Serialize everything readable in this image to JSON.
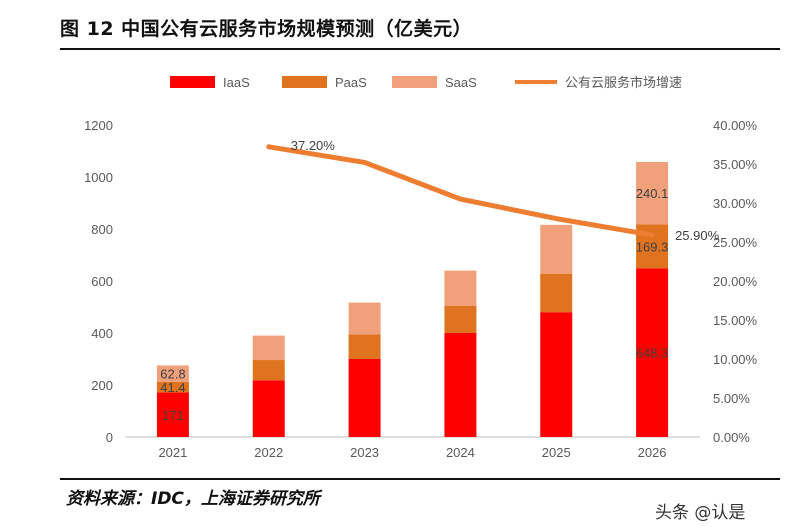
{
  "title": "图 12 中国公有云服务市场规模预测（亿美元）",
  "source": "资料来源：IDC，上海证券研究所",
  "watermark": "头条 @认是",
  "colors": {
    "iaas": "#ff0000",
    "paas": "#e0731f",
    "saas": "#f0a07a",
    "growth": "#ec7d31",
    "axis_text": "#595959",
    "axis_line": "#bfbfbf"
  },
  "chart_data": {
    "type": "bar",
    "stacked": true,
    "categories": [
      "2021",
      "2022",
      "2023",
      "2024",
      "2025",
      "2026"
    ],
    "series": [
      {
        "name": "IaaS",
        "values": [
          171,
          218,
          300,
          400,
          480,
          648.3
        ]
      },
      {
        "name": "PaaS",
        "values": [
          41.4,
          78,
          95,
          105,
          148,
          169.3
        ]
      },
      {
        "name": "SaaS",
        "values": [
          62.8,
          94,
          122,
          135,
          188,
          240.1
        ]
      }
    ],
    "line_series": {
      "name": "公有云服务市场增速",
      "axis": "right",
      "x": [
        "2022",
        "2023",
        "2024",
        "2025",
        "2026"
      ],
      "values": [
        37.2,
        35.2,
        30.5,
        28.0,
        25.9
      ]
    },
    "data_labels": [
      {
        "series": "IaaS",
        "category": "2021",
        "text": "171"
      },
      {
        "series": "PaaS",
        "category": "2021",
        "text": "41.4"
      },
      {
        "series": "SaaS",
        "category": "2021",
        "text": "62.8"
      },
      {
        "series": "IaaS",
        "category": "2026",
        "text": "648.3"
      },
      {
        "series": "PaaS",
        "category": "2026",
        "text": "169.3"
      },
      {
        "series": "SaaS",
        "category": "2026",
        "text": "240.1"
      },
      {
        "series": "公有云服务市场增速",
        "category": "2022",
        "text": "37.20%"
      },
      {
        "series": "公有云服务市场增速",
        "category": "2026",
        "text": "25.90%"
      }
    ],
    "y_left": {
      "ylim": [
        0,
        1200
      ],
      "ticks": [
        "0",
        "200",
        "400",
        "600",
        "800",
        "1000",
        "1200"
      ]
    },
    "y_right": {
      "ylim": [
        0,
        40
      ],
      "ticks": [
        "0.00%",
        "5.00%",
        "10.00%",
        "15.00%",
        "20.00%",
        "25.00%",
        "30.00%",
        "35.00%",
        "40.00%"
      ]
    },
    "legend": {
      "placement": "top",
      "entries": [
        {
          "label": "IaaS",
          "marker": "bar"
        },
        {
          "label": "PaaS",
          "marker": "bar"
        },
        {
          "label": "SaaS",
          "marker": "bar"
        },
        {
          "label": "公有云服务市场增速",
          "marker": "line"
        }
      ]
    },
    "grid": false
  }
}
